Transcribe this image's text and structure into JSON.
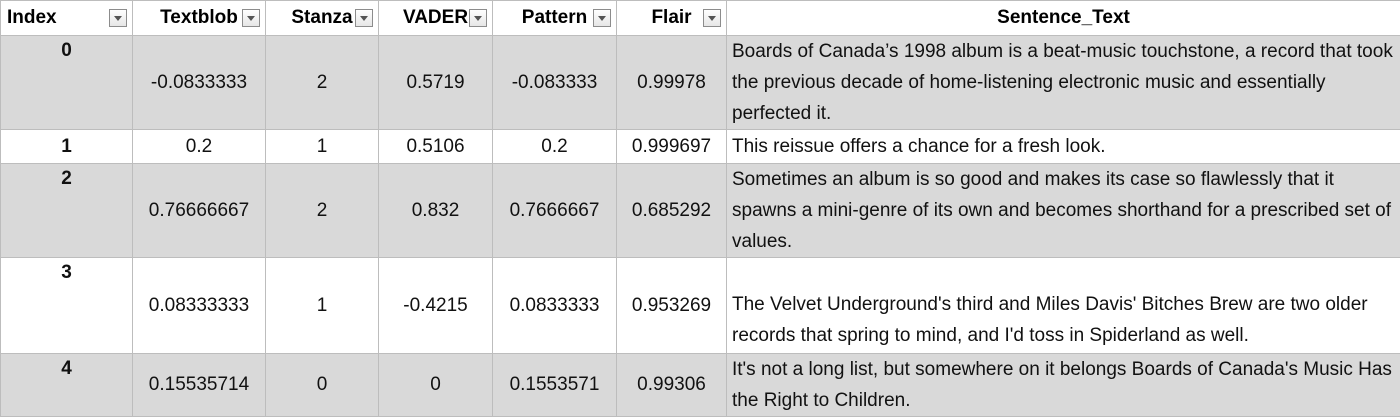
{
  "columns": [
    "Index",
    "Textblob",
    "Stanza",
    "VADER",
    "Pattern",
    "Flair",
    "Sentence_Text"
  ],
  "filter_icon": "dropdown-filter-icon",
  "row_colors": {
    "shaded": "#d9d9d9",
    "plain": "#ffffff"
  },
  "rows": [
    {
      "index": "0",
      "textblob": "-0.0833333",
      "stanza": "2",
      "vader": "0.5719",
      "pattern": "-0.083333",
      "flair": "0.99978",
      "text": "Boards of Canada’s 1998 album is a beat-music touchstone, a record that took the previous decade of home-listening electronic music and essentially perfected it."
    },
    {
      "index": "1",
      "textblob": "0.2",
      "stanza": "1",
      "vader": "0.5106",
      "pattern": "0.2",
      "flair": "0.999697",
      "text": "This reissue offers a chance for a fresh look."
    },
    {
      "index": "2",
      "textblob": "0.76666667",
      "stanza": "2",
      "vader": "0.832",
      "pattern": "0.7666667",
      "flair": "0.685292",
      "text": "Sometimes an album is so good and makes its case so flawlessly that it spawns a mini-genre of its own and becomes shorthand for a prescribed set of values."
    },
    {
      "index": "3",
      "textblob": "0.08333333",
      "stanza": "1",
      "vader": "-0.4215",
      "pattern": "0.0833333",
      "flair": "0.953269",
      "text": "The Velvet Underground's third and Miles Davis' Bitches Brew are two older records that spring to mind, and I'd toss in Spiderland as well."
    },
    {
      "index": "4",
      "textblob": "0.15535714",
      "stanza": "0",
      "vader": "0",
      "pattern": "0.1553571",
      "flair": "0.99306",
      "text": "It's not a long list, but somewhere on it belongs Boards of Canada's Music Has the Right to Children."
    }
  ]
}
